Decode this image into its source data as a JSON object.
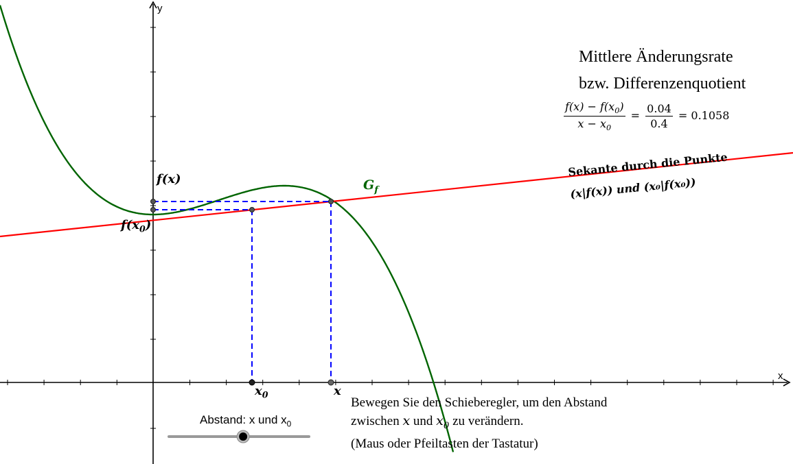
{
  "axes": {
    "x_label": "x",
    "y_label": "y"
  },
  "title": {
    "line1": "Mittlere Änderungsrate",
    "line2": "bzw. Differenzenquotient"
  },
  "formula": {
    "num_left": "f(x) − f(x",
    "num_left_sub": "0",
    "num_left_close": ")",
    "den_left": "x − x",
    "den_left_sub": "0",
    "equals": "=",
    "num_right": "0.04",
    "den_right": "0.4",
    "result": "= 0.1058"
  },
  "secant": {
    "label_line1": "Sekante durch die Punkte",
    "label_line2": "(x|f(x)) und (x₀|f(x₀))"
  },
  "curve": {
    "label": "G",
    "label_sub": "f"
  },
  "markers": {
    "fx": "f(x)",
    "fx0": "f(x",
    "fx0_sub": "0",
    "fx0_close": ")",
    "x0": "x",
    "x0_sub": "0",
    "x": "x"
  },
  "slider": {
    "caption": "Abstand: x und x",
    "caption_sub": "0",
    "value_fraction": 0.53
  },
  "instructions": {
    "line1": "Bewegen Sie den Schieberegler, um den Abstand",
    "line2_a": "zwischen ",
    "line2_x": "x",
    "line2_b": " und ",
    "line2_x0": "x",
    "line2_x0_sub": "0",
    "line2_c": " zu verändern.",
    "line3": "(Maus oder Pfeiltasten der Tastatur)"
  },
  "colors": {
    "curve": "#006400",
    "secant": "#ff0000",
    "guides": "#0000ff",
    "axis": "#000000",
    "point": "#555555"
  }
}
